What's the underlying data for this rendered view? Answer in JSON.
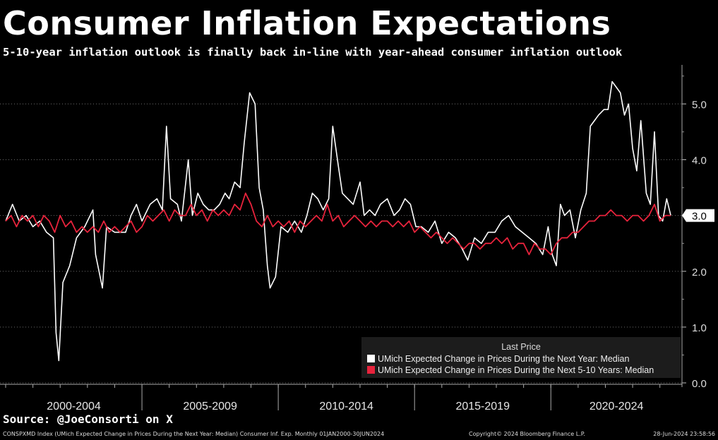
{
  "title": "Consumer Inflation Expectations",
  "subtitle": "5-10-year inflation outlook is finally back in-line with year-ahead consumer inflation outlook",
  "source": "Source: @JoeConsorti on X",
  "footer": {
    "left": "CONSPXMD Index (UMich Expected Change in Prices During the Next Year: Median) Consumer Inf. Exp.  Monthly 01JAN2000-30JUN2024",
    "center": "Copyright© 2024 Bloomberg Finance L.P.",
    "right": "28-Jun-2024 23:58:56"
  },
  "legend": {
    "header": "Last Price",
    "items": [
      {
        "label": "UMich Expected Change in Prices During the Next Year: Median",
        "color": "#ffffff"
      },
      {
        "label": "UMich Expected Change in Prices During the Next 5-10 Years: Median",
        "color": "#e8233c"
      }
    ]
  },
  "chart_data": {
    "type": "line",
    "title": "Consumer Inflation Expectations",
    "ylim": [
      0,
      5.7
    ],
    "xlim": [
      2000,
      2024.5
    ],
    "y_ticks": [
      0.0,
      1.0,
      2.0,
      3.0,
      4.0,
      5.0
    ],
    "x_period_labels": [
      "2000-2004",
      "2005-2009",
      "2010-2014",
      "2015-2019",
      "2020-2024"
    ],
    "x_period_boundaries": [
      2000,
      2005,
      2010,
      2015,
      2020,
      2025
    ],
    "last_price_label": "3.0",
    "grid": "horizontal dotted",
    "legend_position": "bottom-right",
    "series": [
      {
        "name": "UMich Expected Change in Prices During the Next Year: Median",
        "color": "#ffffff",
        "points": [
          [
            2000.0,
            2.9
          ],
          [
            2000.25,
            3.2
          ],
          [
            2000.5,
            2.9
          ],
          [
            2000.75,
            3.0
          ],
          [
            2001.0,
            2.8
          ],
          [
            2001.25,
            2.9
          ],
          [
            2001.5,
            2.7
          ],
          [
            2001.75,
            2.6
          ],
          [
            2001.85,
            0.9
          ],
          [
            2001.95,
            0.4
          ],
          [
            2002.1,
            1.8
          ],
          [
            2002.35,
            2.1
          ],
          [
            2002.6,
            2.6
          ],
          [
            2002.9,
            2.8
          ],
          [
            2003.2,
            3.1
          ],
          [
            2003.3,
            2.3
          ],
          [
            2003.55,
            1.7
          ],
          [
            2003.7,
            2.8
          ],
          [
            2004.0,
            2.7
          ],
          [
            2004.4,
            2.7
          ],
          [
            2004.6,
            3.0
          ],
          [
            2004.8,
            3.2
          ],
          [
            2005.0,
            2.9
          ],
          [
            2005.3,
            3.2
          ],
          [
            2005.55,
            3.3
          ],
          [
            2005.75,
            3.1
          ],
          [
            2005.9,
            4.6
          ],
          [
            2006.05,
            3.3
          ],
          [
            2006.3,
            3.2
          ],
          [
            2006.45,
            2.9
          ],
          [
            2006.7,
            4.0
          ],
          [
            2006.85,
            3.0
          ],
          [
            2007.05,
            3.4
          ],
          [
            2007.25,
            3.2
          ],
          [
            2007.45,
            3.1
          ],
          [
            2007.65,
            3.1
          ],
          [
            2007.85,
            3.2
          ],
          [
            2008.05,
            3.4
          ],
          [
            2008.2,
            3.3
          ],
          [
            2008.4,
            3.6
          ],
          [
            2008.6,
            3.5
          ],
          [
            2008.75,
            4.3
          ],
          [
            2008.95,
            5.2
          ],
          [
            2009.15,
            5.0
          ],
          [
            2009.3,
            3.5
          ],
          [
            2009.45,
            3.1
          ],
          [
            2009.6,
            2.1
          ],
          [
            2009.7,
            1.7
          ],
          [
            2009.9,
            1.9
          ],
          [
            2010.1,
            2.8
          ],
          [
            2010.35,
            2.7
          ],
          [
            2010.6,
            2.9
          ],
          [
            2010.85,
            2.7
          ],
          [
            2011.05,
            3.0
          ],
          [
            2011.25,
            3.4
          ],
          [
            2011.45,
            3.3
          ],
          [
            2011.65,
            3.1
          ],
          [
            2011.85,
            3.3
          ],
          [
            2012.0,
            4.6
          ],
          [
            2012.2,
            3.9
          ],
          [
            2012.35,
            3.4
          ],
          [
            2012.55,
            3.3
          ],
          [
            2012.75,
            3.2
          ],
          [
            2013.0,
            3.6
          ],
          [
            2013.15,
            3.0
          ],
          [
            2013.35,
            3.1
          ],
          [
            2013.55,
            3.0
          ],
          [
            2013.75,
            3.2
          ],
          [
            2014.0,
            3.3
          ],
          [
            2014.25,
            3.0
          ],
          [
            2014.45,
            3.1
          ],
          [
            2014.65,
            3.3
          ],
          [
            2014.85,
            3.2
          ],
          [
            2015.05,
            2.8
          ],
          [
            2015.25,
            2.8
          ],
          [
            2015.5,
            2.7
          ],
          [
            2015.75,
            2.9
          ],
          [
            2016.0,
            2.5
          ],
          [
            2016.25,
            2.7
          ],
          [
            2016.5,
            2.6
          ],
          [
            2016.75,
            2.4
          ],
          [
            2016.95,
            2.2
          ],
          [
            2017.2,
            2.6
          ],
          [
            2017.45,
            2.5
          ],
          [
            2017.7,
            2.7
          ],
          [
            2017.95,
            2.7
          ],
          [
            2018.2,
            2.9
          ],
          [
            2018.45,
            3.0
          ],
          [
            2018.7,
            2.8
          ],
          [
            2018.95,
            2.7
          ],
          [
            2019.2,
            2.6
          ],
          [
            2019.45,
            2.5
          ],
          [
            2019.7,
            2.3
          ],
          [
            2019.9,
            2.8
          ],
          [
            2020.05,
            2.3
          ],
          [
            2020.2,
            2.1
          ],
          [
            2020.35,
            3.2
          ],
          [
            2020.5,
            3.0
          ],
          [
            2020.7,
            3.1
          ],
          [
            2020.9,
            2.6
          ],
          [
            2021.1,
            3.1
          ],
          [
            2021.3,
            3.4
          ],
          [
            2021.45,
            4.6
          ],
          [
            2021.6,
            4.7
          ],
          [
            2021.75,
            4.8
          ],
          [
            2021.95,
            4.9
          ],
          [
            2022.1,
            4.9
          ],
          [
            2022.25,
            5.4
          ],
          [
            2022.4,
            5.3
          ],
          [
            2022.55,
            5.2
          ],
          [
            2022.7,
            4.8
          ],
          [
            2022.85,
            5.0
          ],
          [
            2023.0,
            4.2
          ],
          [
            2023.15,
            3.8
          ],
          [
            2023.3,
            4.7
          ],
          [
            2023.5,
            3.4
          ],
          [
            2023.65,
            3.2
          ],
          [
            2023.8,
            4.5
          ],
          [
            2023.95,
            3.0
          ],
          [
            2024.1,
            2.9
          ],
          [
            2024.25,
            3.3
          ],
          [
            2024.4,
            3.0
          ]
        ]
      },
      {
        "name": "UMich Expected Change in Prices During the Next 5-10 Years: Median",
        "color": "#e8233c",
        "points": [
          [
            2000.0,
            2.9
          ],
          [
            2000.2,
            3.0
          ],
          [
            2000.4,
            2.8
          ],
          [
            2000.6,
            3.0
          ],
          [
            2000.8,
            2.9
          ],
          [
            2001.0,
            3.0
          ],
          [
            2001.2,
            2.8
          ],
          [
            2001.4,
            3.0
          ],
          [
            2001.6,
            2.9
          ],
          [
            2001.8,
            2.7
          ],
          [
            2002.0,
            3.0
          ],
          [
            2002.2,
            2.8
          ],
          [
            2002.4,
            2.9
          ],
          [
            2002.6,
            2.7
          ],
          [
            2002.8,
            2.8
          ],
          [
            2003.0,
            2.7
          ],
          [
            2003.2,
            2.8
          ],
          [
            2003.4,
            2.7
          ],
          [
            2003.6,
            2.9
          ],
          [
            2003.8,
            2.7
          ],
          [
            2004.0,
            2.8
          ],
          [
            2004.2,
            2.7
          ],
          [
            2004.4,
            2.8
          ],
          [
            2004.6,
            2.9
          ],
          [
            2004.8,
            2.7
          ],
          [
            2005.0,
            2.8
          ],
          [
            2005.2,
            3.0
          ],
          [
            2005.4,
            2.9
          ],
          [
            2005.6,
            3.0
          ],
          [
            2005.8,
            3.1
          ],
          [
            2006.0,
            2.9
          ],
          [
            2006.2,
            3.1
          ],
          [
            2006.4,
            3.0
          ],
          [
            2006.6,
            3.0
          ],
          [
            2006.8,
            3.2
          ],
          [
            2007.0,
            3.0
          ],
          [
            2007.2,
            3.1
          ],
          [
            2007.4,
            2.9
          ],
          [
            2007.6,
            3.1
          ],
          [
            2007.8,
            3.0
          ],
          [
            2008.0,
            3.1
          ],
          [
            2008.2,
            3.0
          ],
          [
            2008.4,
            3.2
          ],
          [
            2008.6,
            3.1
          ],
          [
            2008.8,
            3.4
          ],
          [
            2009.0,
            3.2
          ],
          [
            2009.2,
            2.9
          ],
          [
            2009.4,
            2.8
          ],
          [
            2009.6,
            3.0
          ],
          [
            2009.8,
            2.8
          ],
          [
            2010.0,
            2.9
          ],
          [
            2010.2,
            2.8
          ],
          [
            2010.4,
            2.9
          ],
          [
            2010.6,
            2.7
          ],
          [
            2010.8,
            2.9
          ],
          [
            2011.0,
            2.8
          ],
          [
            2011.2,
            2.9
          ],
          [
            2011.4,
            3.0
          ],
          [
            2011.6,
            2.9
          ],
          [
            2011.8,
            3.2
          ],
          [
            2012.0,
            2.9
          ],
          [
            2012.2,
            3.0
          ],
          [
            2012.4,
            2.8
          ],
          [
            2012.6,
            2.9
          ],
          [
            2012.8,
            3.0
          ],
          [
            2013.0,
            2.9
          ],
          [
            2013.2,
            2.8
          ],
          [
            2013.4,
            2.9
          ],
          [
            2013.6,
            2.8
          ],
          [
            2013.8,
            2.9
          ],
          [
            2014.0,
            2.9
          ],
          [
            2014.2,
            2.8
          ],
          [
            2014.4,
            2.9
          ],
          [
            2014.6,
            2.8
          ],
          [
            2014.8,
            2.9
          ],
          [
            2015.0,
            2.7
          ],
          [
            2015.2,
            2.8
          ],
          [
            2015.4,
            2.7
          ],
          [
            2015.6,
            2.6
          ],
          [
            2015.8,
            2.7
          ],
          [
            2016.0,
            2.6
          ],
          [
            2016.2,
            2.5
          ],
          [
            2016.4,
            2.6
          ],
          [
            2016.6,
            2.5
          ],
          [
            2016.8,
            2.4
          ],
          [
            2017.0,
            2.5
          ],
          [
            2017.2,
            2.5
          ],
          [
            2017.4,
            2.4
          ],
          [
            2017.6,
            2.5
          ],
          [
            2017.8,
            2.5
          ],
          [
            2018.0,
            2.6
          ],
          [
            2018.2,
            2.5
          ],
          [
            2018.4,
            2.6
          ],
          [
            2018.6,
            2.4
          ],
          [
            2018.8,
            2.5
          ],
          [
            2019.0,
            2.5
          ],
          [
            2019.2,
            2.3
          ],
          [
            2019.4,
            2.5
          ],
          [
            2019.6,
            2.4
          ],
          [
            2019.8,
            2.4
          ],
          [
            2020.0,
            2.3
          ],
          [
            2020.2,
            2.5
          ],
          [
            2020.4,
            2.6
          ],
          [
            2020.6,
            2.6
          ],
          [
            2020.8,
            2.7
          ],
          [
            2021.0,
            2.7
          ],
          [
            2021.2,
            2.8
          ],
          [
            2021.4,
            2.9
          ],
          [
            2021.6,
            2.9
          ],
          [
            2021.8,
            3.0
          ],
          [
            2022.0,
            3.0
          ],
          [
            2022.2,
            3.1
          ],
          [
            2022.4,
            3.0
          ],
          [
            2022.6,
            3.0
          ],
          [
            2022.8,
            2.9
          ],
          [
            2023.0,
            3.0
          ],
          [
            2023.2,
            3.0
          ],
          [
            2023.4,
            2.9
          ],
          [
            2023.6,
            3.0
          ],
          [
            2023.8,
            3.2
          ],
          [
            2024.0,
            2.9
          ],
          [
            2024.2,
            3.0
          ],
          [
            2024.4,
            3.0
          ]
        ]
      }
    ]
  }
}
